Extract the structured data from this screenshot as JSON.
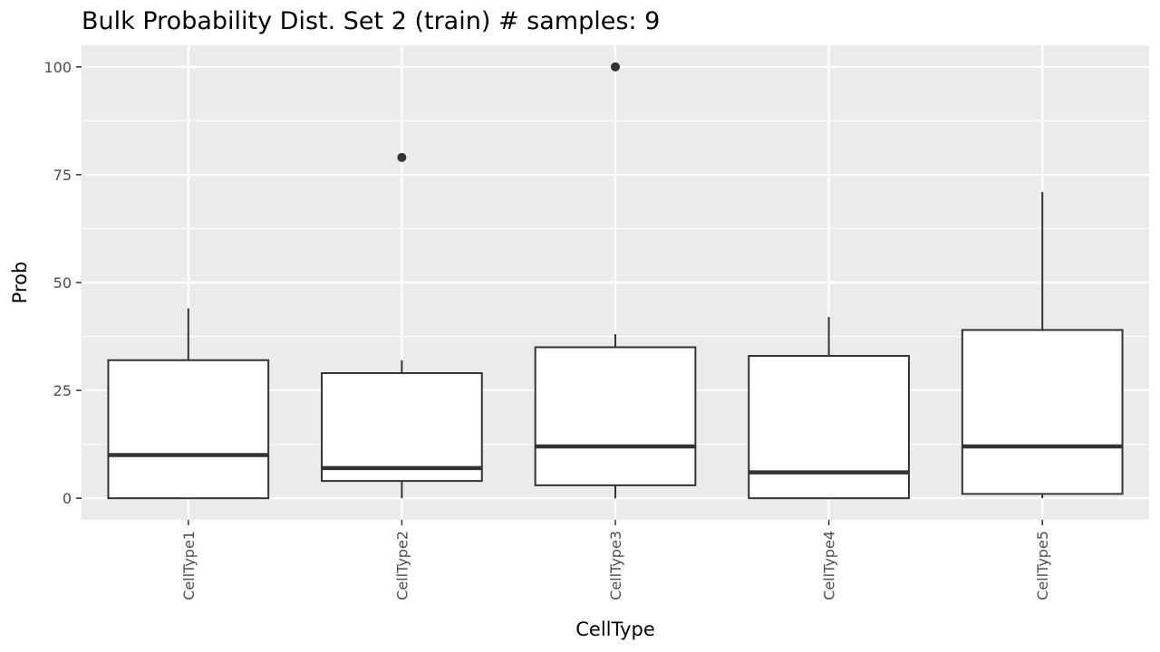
{
  "chart_data": {
    "type": "box",
    "title": "Bulk Probability Dist. Set 2 (train) # samples: 9",
    "xlabel": "CellType",
    "ylabel": "Prob",
    "ylim": [
      -5,
      105
    ],
    "yticks": [
      0,
      25,
      50,
      75,
      100
    ],
    "grid": true,
    "categories": [
      "CellType1",
      "CellType2",
      "CellType3",
      "CellType4",
      "CellType5"
    ],
    "boxes": [
      {
        "category": "CellType1",
        "min": 0,
        "q1": 0,
        "median": 10,
        "q3": 32,
        "max": 44,
        "outliers": []
      },
      {
        "category": "CellType2",
        "min": 0,
        "q1": 4,
        "median": 7,
        "q3": 29,
        "max": 32,
        "outliers": [
          79
        ]
      },
      {
        "category": "CellType3",
        "min": 0,
        "q1": 3,
        "median": 12,
        "q3": 35,
        "max": 38,
        "outliers": [
          100
        ]
      },
      {
        "category": "CellType4",
        "min": 0,
        "q1": 0,
        "median": 6,
        "q3": 33,
        "max": 42,
        "outliers": []
      },
      {
        "category": "CellType5",
        "min": 0,
        "q1": 1,
        "median": 12,
        "q3": 39,
        "max": 71,
        "outliers": []
      }
    ],
    "colors": {
      "panel_background": "#ebebeb",
      "grid_major": "#ffffff",
      "box_fill": "#ffffff",
      "box_line": "#333333"
    }
  }
}
